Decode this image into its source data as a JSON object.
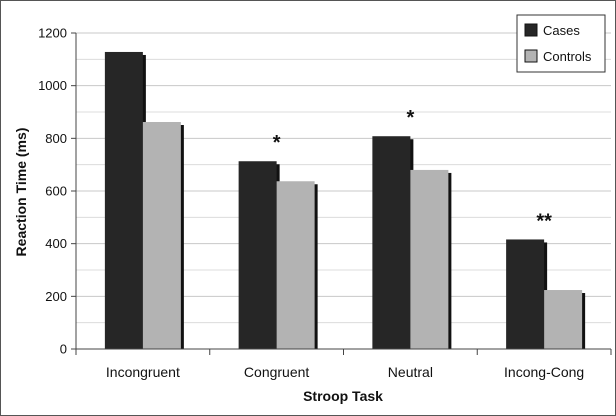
{
  "chart_data": {
    "type": "bar",
    "categories": [
      "Incongruent",
      "Congruent",
      "Neutral",
      "Incong-Cong"
    ],
    "series": [
      {
        "name": "Cases",
        "values": [
          1128,
          713,
          808,
          416
        ],
        "color": "#262626"
      },
      {
        "name": "Controls",
        "values": [
          862,
          637,
          680,
          224
        ],
        "color": "#b3b3b3"
      }
    ],
    "title": "",
    "xlabel": "Stroop Task",
    "ylabel": "Reaction Time (ms)",
    "ylim": [
      0,
      1200
    ],
    "yticks": [
      0,
      200,
      400,
      600,
      800,
      1000,
      1200
    ],
    "grid": true,
    "legend": "top-right",
    "annotations": [
      "",
      "*",
      "*",
      "**"
    ]
  }
}
